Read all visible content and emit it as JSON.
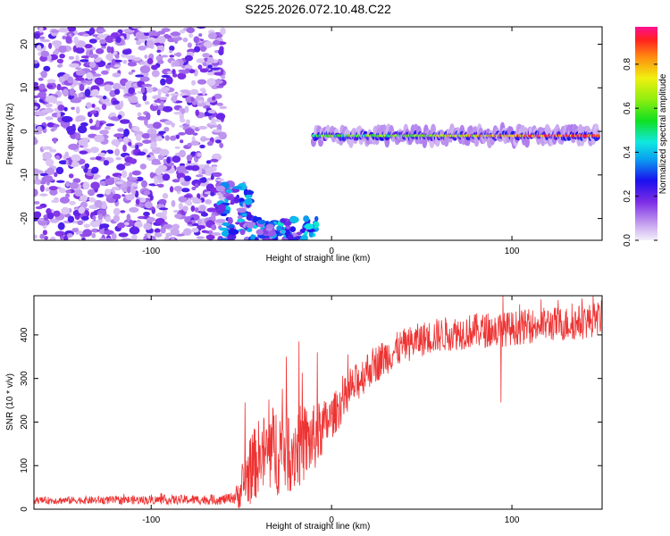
{
  "title": "S225.2026.072.10.48.C22",
  "chart_data": [
    {
      "type": "heatmap",
      "xlabel": "Height of straight line (km)",
      "ylabel": "Frequency (Hz)",
      "xlim": [
        -165,
        150
      ],
      "ylim": [
        -25,
        24
      ],
      "xticks": [
        -100,
        0,
        100
      ],
      "yticks": [
        -20,
        -10,
        0,
        10,
        20
      ],
      "colorbar": {
        "label": "Normalized spectral amplitude",
        "range": [
          0,
          0.97
        ],
        "ticks": [
          "0.0",
          "0.2",
          "0.4",
          "0.6",
          "0.8"
        ]
      },
      "features": [
        {
          "name": "diffuse noise region",
          "x_range": [
            -165,
            -60
          ],
          "f_range": [
            -25,
            24
          ],
          "amplitude": 0.2
        },
        {
          "name": "low-frequency patch",
          "x_range": [
            -62,
            -45
          ],
          "f_range": [
            -25,
            -12
          ],
          "amplitude": 0.35
        },
        {
          "name": "low-frequency patch",
          "x_range": [
            -45,
            -8
          ],
          "f_range": [
            -25,
            -20
          ],
          "amplitude": 0.4
        },
        {
          "name": "zero-frequency band",
          "x_range": [
            -10,
            148
          ],
          "f_range": [
            -2.5,
            0.5
          ],
          "peak_amplitude": 0.97
        }
      ]
    },
    {
      "type": "line",
      "xlabel": "Height of straight line (km)",
      "ylabel": "SNR (10 * v/v)",
      "xlim": [
        -165,
        150
      ],
      "ylim": [
        0,
        490
      ],
      "xticks": [
        -100,
        0,
        100
      ],
      "yticks": [
        0,
        100,
        200,
        300,
        400
      ],
      "color": "#ee3333",
      "trend": {
        "x": [
          -165,
          -60,
          -52,
          -45,
          -40,
          -30,
          -20,
          -10,
          0,
          10,
          20,
          30,
          40,
          50,
          60,
          70,
          80,
          90,
          100,
          110,
          120,
          130,
          140,
          150
        ],
        "y": [
          20,
          22,
          30,
          90,
          120,
          140,
          140,
          160,
          210,
          270,
          320,
          350,
          375,
          390,
          400,
          405,
          410,
          410,
          415,
          420,
          425,
          425,
          430,
          440
        ]
      },
      "noise_amplitude": {
        "x": [
          -165,
          -55,
          -45,
          -30,
          -20,
          -10,
          0,
          20,
          40,
          150
        ],
        "y": [
          8,
          12,
          80,
          110,
          100,
          80,
          50,
          45,
          40,
          40
        ]
      },
      "spikes": [
        {
          "x": -48,
          "y": 245
        },
        {
          "x": -25,
          "y": 350
        },
        {
          "x": -18,
          "y": 385
        },
        {
          "x": -8,
          "y": 360
        },
        {
          "x": 95,
          "y": 490
        },
        {
          "x": 94,
          "y": 245
        }
      ]
    }
  ]
}
